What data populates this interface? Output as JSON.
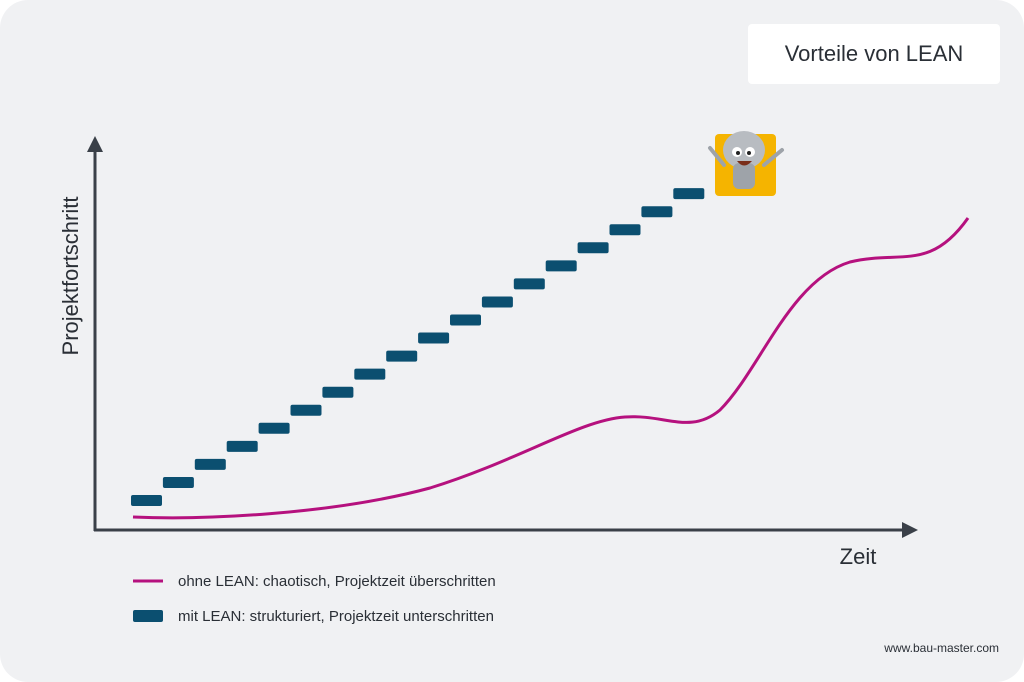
{
  "header": {
    "title": "Vorteile von LEAN"
  },
  "axes": {
    "y_label": "Projektfortschritt",
    "x_label": "Zeit"
  },
  "legend": [
    {
      "label": "ohne LEAN: chaotisch, Projektzeit überschritten"
    },
    {
      "label": "mit LEAN: strukturiert, Projektzeit unterschritten"
    }
  ],
  "footer": {
    "url": "www.bau-master.com"
  }
}
